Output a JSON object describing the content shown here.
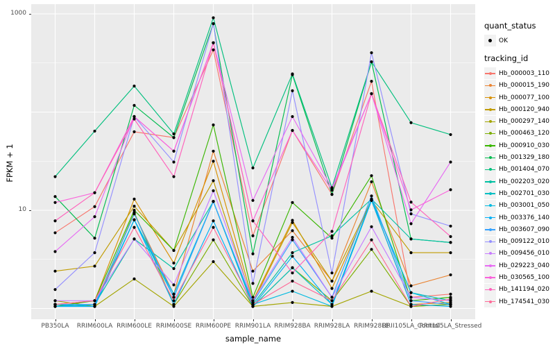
{
  "panel": {
    "bg": "#EBEBEB",
    "gridline_color": "#FFFFFF",
    "point_color": "#000000",
    "tick_text_color": "#4D4D4D"
  },
  "legend": {
    "quant_status_title": "quant_status",
    "quant_status_items": [
      "OK"
    ],
    "tracking_id_title": "tracking_id"
  },
  "axis": {
    "y_ticks": [
      {
        "label": "1000",
        "value": 1000
      },
      {
        "label": "10",
        "value": 10
      }
    ]
  },
  "chart_data": {
    "type": "line",
    "title": "",
    "xlabel": "sample_name",
    "ylabel": "FPKM + 1",
    "y_scale": "log10",
    "ylim": [
      0.9,
      1100
    ],
    "grid": true,
    "legend_position": "right",
    "categories": [
      "PB350LA",
      "RRIM600LA",
      "RRIM600LE",
      "RRIM600SE",
      "RRIM600PE",
      "RRIM901LA",
      "RRIM928BA",
      "RRIM928LA",
      "RRIM928LE",
      "RRII105LA_Control",
      "RRII105LA_Stressed"
    ],
    "series": [
      {
        "name": "Hb_000003_110",
        "color": "#F8766D",
        "values": [
          5.9,
          10.9,
          63,
          55,
          430,
          5.5,
          65,
          14.5,
          206,
          1.3,
          1.4
        ]
      },
      {
        "name": "Hb_000015_190",
        "color": "#EA8331",
        "values": [
          1.05,
          1.1,
          9.2,
          1.4,
          40,
          2.4,
          6.2,
          1.9,
          19.5,
          1.7,
          2.2
        ]
      },
      {
        "name": "Hb_000077_100",
        "color": "#D89000",
        "values": [
          1.1,
          1.2,
          13,
          2.9,
          31.6,
          1.2,
          7.9,
          1.6,
          12.6,
          1.1,
          1.15
        ]
      },
      {
        "name": "Hb_000120_940",
        "color": "#C09B00",
        "values": [
          2.4,
          2.7,
          11,
          3.9,
          20,
          1.15,
          7.5,
          1.9,
          12.6,
          3.7,
          3.7
        ]
      },
      {
        "name": "Hb_000297_140",
        "color": "#A3A500",
        "values": [
          1.2,
          1.05,
          2.0,
          1.05,
          3.0,
          1.05,
          1.15,
          1.05,
          1.5,
          1.05,
          1.1
        ]
      },
      {
        "name": "Hb_000463_120",
        "color": "#7CAE00",
        "values": [
          1.1,
          1.05,
          9.5,
          1.1,
          5.0,
          1.05,
          2.6,
          1.2,
          4.0,
          1.05,
          1.1
        ]
      },
      {
        "name": "Hb_000910_030",
        "color": "#39B600",
        "values": [
          1.05,
          1.2,
          10,
          3.9,
          74,
          1.3,
          12,
          5.2,
          22.5,
          1.2,
          1.3
        ]
      },
      {
        "name": "Hb_001329_180",
        "color": "#00BB4E",
        "values": [
          13.8,
          5.2,
          117,
          55,
          795,
          3.6,
          240,
          14.5,
          325,
          5.1,
          4.7
        ]
      },
      {
        "name": "Hb_001404_070",
        "color": "#00BF7D",
        "values": [
          22,
          64,
          184,
          60,
          912,
          27,
          245,
          17,
          325,
          78,
          59
        ]
      },
      {
        "name": "Hb_002203_020",
        "color": "#00C1A3",
        "values": [
          1.05,
          1.1,
          5.1,
          2.55,
          12.3,
          1.1,
          3.7,
          5.5,
          13,
          5.1,
          4.7
        ]
      },
      {
        "name": "Hb_002701_030",
        "color": "#00BFC4",
        "values": [
          1.1,
          1.05,
          8.0,
          1.3,
          12.3,
          1.05,
          2.6,
          1.1,
          13,
          1.45,
          1.2
        ]
      },
      {
        "name": "Hb_003001_050",
        "color": "#00BAE0",
        "values": [
          1.05,
          1.1,
          8.0,
          1.4,
          12.3,
          1.1,
          1.5,
          1.05,
          12.6,
          1.45,
          1.1
        ]
      },
      {
        "name": "Hb_003376_140",
        "color": "#00B0F6",
        "values": [
          1.05,
          1.05,
          8.0,
          1.1,
          7.8,
          1.05,
          3.4,
          1.1,
          12.6,
          1.1,
          1.05
        ]
      },
      {
        "name": "Hb_003607_090",
        "color": "#35A2FF",
        "values": [
          1.1,
          1.1,
          9.2,
          1.3,
          12.3,
          1.15,
          5.0,
          1.3,
          14,
          1.2,
          1.1
        ]
      },
      {
        "name": "Hb_009122_010",
        "color": "#9590FF",
        "values": [
          1.56,
          3.7,
          90,
          31,
          795,
          1.8,
          165,
          2.3,
          402,
          9.2,
          6.9
        ]
      },
      {
        "name": "Hb_009456_010",
        "color": "#C77CFF",
        "values": [
          1.2,
          1.2,
          5.1,
          1.74,
          15.8,
          1.2,
          5.3,
          1.3,
          6.8,
          1.3,
          1.2
        ]
      },
      {
        "name": "Hb_029223_040",
        "color": "#E76BF3",
        "values": [
          3.8,
          8.6,
          90,
          40,
          508,
          12.6,
          90,
          16.8,
          154,
          7.3,
          31
        ]
      },
      {
        "name": "Hb_030565_100",
        "color": "#FA62DB",
        "values": [
          12,
          15.1,
          90,
          40,
          508,
          7.8,
          65,
          16,
          154,
          10.1,
          16.2
        ]
      },
      {
        "name": "Hb_141194_020",
        "color": "#FF62BC",
        "values": [
          7.8,
          15.1,
          85,
          22,
          508,
          7.8,
          2.3,
          6.1,
          154,
          12.1,
          5.4
        ]
      },
      {
        "name": "Hb_174541_030",
        "color": "#FF6A98",
        "values": [
          1.1,
          1.2,
          6.7,
          1.2,
          6.7,
          1.1,
          1.9,
          1.2,
          5.0,
          1.05,
          1.25
        ]
      }
    ]
  }
}
